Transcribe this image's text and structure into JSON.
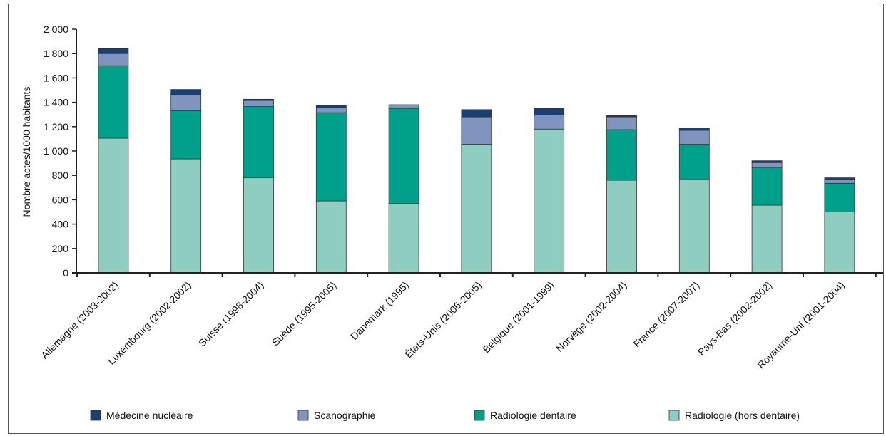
{
  "chart_data": {
    "type": "bar",
    "stacked": true,
    "title": "",
    "xlabel": "",
    "ylabel": "Nombre actes/1000 habitants",
    "ylim": [
      0,
      2000
    ],
    "yticks": [
      0,
      200,
      400,
      600,
      800,
      1000,
      1200,
      1400,
      1600,
      1800,
      2000
    ],
    "ytick_labels": [
      "0",
      "200",
      "400",
      "600",
      "800",
      "1 000",
      "1 200",
      "1 400",
      "1 600",
      "1 800",
      "2 000"
    ],
    "grid": false,
    "legend_position": "bottom",
    "categories": [
      "Allemagne (2003-2002)",
      "Luxembourg (2002-2002)",
      "Suisse (1998-2004)",
      "Suède (1995-2005)",
      "Danemark (1995)",
      "États-Unis (2006-2005)",
      "Belgique (2001-1999)",
      "Norvège (2002-2004)",
      "France (2007-2007)",
      "Pays-Bas (2002-2002)",
      "Royaume-Uni (2001-2004)"
    ],
    "series": [
      {
        "name": "Radiologie (hors dentaire)",
        "color": "#8ecdbf",
        "values": [
          1105,
          935,
          780,
          590,
          570,
          1055,
          1180,
          760,
          765,
          555,
          500
        ]
      },
      {
        "name": "Radiologie dentaire",
        "color": "#00a08a",
        "values": [
          595,
          395,
          585,
          725,
          780,
          0,
          0,
          415,
          290,
          310,
          235
        ]
      },
      {
        "name": "Scanographie",
        "color": "#8095bd",
        "values": [
          100,
          130,
          50,
          40,
          30,
          225,
          115,
          105,
          115,
          40,
          30
        ]
      },
      {
        "name": "Médecine nucléaire",
        "color": "#1a3f73",
        "values": [
          40,
          45,
          10,
          20,
          0,
          60,
          55,
          10,
          20,
          15,
          15
        ]
      }
    ],
    "legend_order": [
      "Médecine nucléaire",
      "Scanographie",
      "Radiologie dentaire",
      "Radiologie (hors dentaire)"
    ]
  }
}
